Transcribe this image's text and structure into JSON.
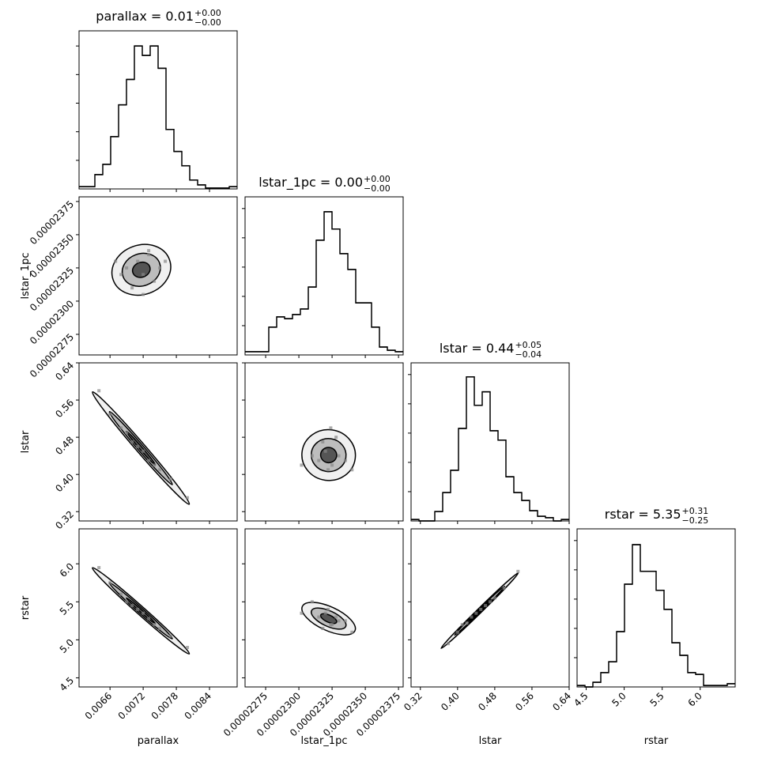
{
  "chart_data": {
    "type": "corner",
    "params": [
      {
        "name": "parallax",
        "title": "parallax = 0.01",
        "title_upper": "+0.00",
        "title_lower": "−0.00",
        "lim": [
          0.00604,
          0.0089
        ],
        "ticks": [
          0.0066,
          0.0072,
          0.0078,
          0.0084
        ],
        "bins": [
          0.00604,
          0.006183,
          0.006326,
          0.006469,
          0.006612,
          0.006755,
          0.006898,
          0.007041,
          0.007184,
          0.007327,
          0.00747,
          0.007613,
          0.007756,
          0.007899,
          0.008042,
          0.008185,
          0.008328,
          0.008471,
          0.008614,
          0.008757,
          0.0089
        ],
        "counts": [
          8,
          8,
          50,
          86,
          183,
          294,
          383,
          500,
          467,
          500,
          422,
          208,
          131,
          81,
          31,
          14,
          3,
          3,
          3,
          8
        ],
        "hist_ylim": [
          0,
          553
        ],
        "hist_ticks": [
          100,
          200,
          300,
          400,
          500
        ]
      },
      {
        "name": "lstar_1pc",
        "title": "lstar_1pc = 0.00",
        "title_upper": "+0.00",
        "title_lower": "−0.00",
        "lim": [
          2.2595e-05,
          2.3785e-05
        ],
        "ticks": [
          {
            "value": 2.275e-05,
            "label": "0.00002275"
          },
          {
            "value": 2.3e-05,
            "label": "0.00002300"
          },
          {
            "value": 2.325e-05,
            "label": "0.00002325"
          },
          {
            "value": 2.35e-05,
            "label": "0.00002350"
          },
          {
            "value": 2.375e-05,
            "label": "0.00002375"
          }
        ],
        "bins": [
          2.2595e-05,
          2.26545e-05,
          2.2714e-05,
          2.27735e-05,
          2.2833e-05,
          2.28925e-05,
          2.2952e-05,
          2.30115e-05,
          2.3071e-05,
          2.31305e-05,
          2.319e-05,
          2.32495e-05,
          2.3309e-05,
          2.33685e-05,
          2.3428e-05,
          2.34875e-05,
          2.3547e-05,
          2.36065e-05,
          2.3666e-05,
          2.37255e-05,
          2.3785e-05
        ],
        "counts": [
          11,
          11,
          11,
          95,
          130,
          124,
          138,
          157,
          232,
          392,
          489,
          430,
          346,
          292,
          178,
          178,
          95,
          27,
          16,
          11
        ],
        "hist_ylim": [
          0,
          540
        ],
        "hist_ticks": [
          100,
          200,
          300,
          400,
          500
        ]
      },
      {
        "name": "lstar",
        "title": "lstar = 0.44",
        "title_upper": "+0.05",
        "title_lower": "−0.04",
        "lim": [
          0.3,
          0.64
        ],
        "ticks": [
          0.32,
          {
            "value": 0.4,
            "label": "0.40"
          },
          0.48,
          0.56,
          0.64
        ],
        "bins": [
          0.3,
          0.317,
          0.334,
          0.351,
          0.368,
          0.385,
          0.402,
          0.419,
          0.436,
          0.453,
          0.47,
          0.487,
          0.504,
          0.521,
          0.538,
          0.555,
          0.572,
          0.589,
          0.606,
          0.623,
          0.64
        ],
        "counts": [
          5,
          0,
          0,
          32,
          97,
          173,
          316,
          492,
          395,
          441,
          308,
          276,
          151,
          97,
          70,
          35,
          16,
          11,
          0,
          5
        ],
        "hist_ylim": [
          0,
          540
        ],
        "hist_ticks": [
          100,
          200,
          300,
          400,
          500
        ]
      },
      {
        "name": "rstar",
        "title": "rstar = 5.35",
        "title_upper": "+0.31",
        "title_lower": "−0.25",
        "lim": [
          4.38,
          6.46
        ],
        "ticks": [
          4.5,
          {
            "value": 5,
            "label": "5.0"
          },
          5.5,
          {
            "value": 6,
            "label": "6.0"
          }
        ],
        "bins": [
          4.38,
          4.484,
          4.588,
          4.692,
          4.796,
          4.9,
          5.004,
          5.108,
          5.212,
          5.316,
          5.42,
          5.524,
          5.628,
          5.732,
          5.836,
          5.94,
          6.044,
          6.148,
          6.252,
          6.356,
          6.46
        ],
        "counts": [
          5,
          0,
          16,
          49,
          86,
          189,
          351,
          486,
          395,
          395,
          330,
          265,
          151,
          108,
          49,
          43,
          5,
          5,
          5,
          11
        ],
        "hist_ylim": [
          0,
          540
        ],
        "hist_ticks": [
          100,
          200,
          300,
          400,
          500
        ]
      }
    ],
    "pairs": [
      {
        "x": [
          0.0069,
          0.0071,
          0.0072,
          0.0073,
          0.0074,
          0.007,
          0.0075,
          0.0068,
          0.0072,
          0.0076,
          0.0067,
          0.0073
        ],
        "y": [
          2.325e-05,
          2.33e-05,
          2.32e-05,
          2.335e-05,
          2.315e-05,
          2.31e-05,
          2.325e-05,
          2.32e-05,
          2.305e-05,
          2.33e-05,
          2.33e-05,
          2.338e-05
        ]
      },
      {
        "x": [
          0.0064,
          0.0066,
          0.0068,
          0.0069,
          0.007,
          0.0071,
          0.0072,
          0.0073,
          0.0074,
          0.0075,
          0.0077,
          0.008
        ],
        "y": [
          0.58,
          0.53,
          0.5,
          0.49,
          0.47,
          0.46,
          0.45,
          0.43,
          0.42,
          0.41,
          0.39,
          0.35
        ]
      },
      {
        "x": [
          2.315e-05,
          2.32e-05,
          2.325e-05,
          2.33e-05,
          2.322e-05,
          2.318e-05,
          2.328e-05,
          2.31e-05,
          2.335e-05,
          2.324e-05,
          2.302e-05,
          2.34e-05
        ],
        "y": [
          0.43,
          0.45,
          0.42,
          0.44,
          0.41,
          0.47,
          0.48,
          0.44,
          0.43,
          0.5,
          0.42,
          0.41
        ]
      },
      {
        "x": [
          0.0064,
          0.0066,
          0.0068,
          0.0069,
          0.007,
          0.0071,
          0.0072,
          0.0073,
          0.0074,
          0.0075,
          0.0077,
          0.008
        ],
        "y": [
          5.95,
          5.75,
          5.6,
          5.5,
          5.45,
          5.4,
          5.35,
          5.28,
          5.2,
          5.15,
          5.05,
          4.9
        ]
      },
      {
        "x": [
          2.315e-05,
          2.32e-05,
          2.325e-05,
          2.33e-05,
          2.322e-05,
          2.318e-05,
          2.328e-05,
          2.31e-05,
          2.335e-05,
          2.324e-05,
          2.302e-05,
          2.34e-05
        ],
        "y": [
          5.3,
          5.35,
          5.2,
          5.25,
          5.4,
          5.15,
          5.3,
          5.5,
          5.25,
          5.2,
          5.35,
          5.1
        ]
      },
      {
        "x": [
          0.38,
          0.4,
          0.41,
          0.42,
          0.43,
          0.44,
          0.45,
          0.46,
          0.47,
          0.48,
          0.5,
          0.53
        ],
        "y": [
          4.95,
          5.1,
          5.2,
          5.22,
          5.3,
          5.35,
          5.4,
          5.45,
          5.5,
          5.55,
          5.68,
          5.9
        ]
      }
    ]
  }
}
